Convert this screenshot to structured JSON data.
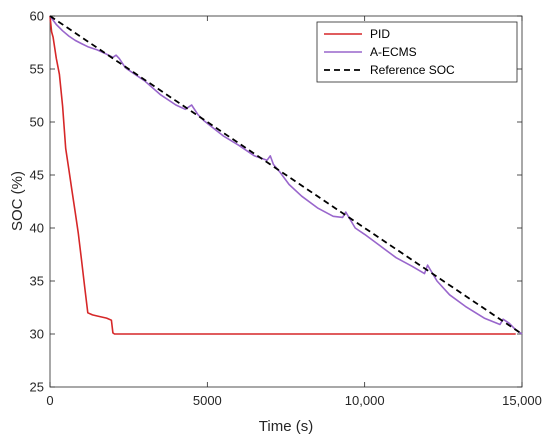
{
  "chart_data": {
    "type": "line",
    "title": "",
    "xlabel": "Time (s)",
    "ylabel": "SOC (%)",
    "xlim": [
      0,
      15000
    ],
    "ylim": [
      25,
      60
    ],
    "xticks": [
      0,
      5000,
      10000,
      15000
    ],
    "xtick_labels": [
      "0",
      "5000",
      "10,000",
      "15,000"
    ],
    "yticks": [
      25,
      30,
      35,
      40,
      45,
      50,
      55,
      60
    ],
    "ytick_labels": [
      "25",
      "30",
      "35",
      "40",
      "45",
      "50",
      "55",
      "60"
    ],
    "grid": false,
    "legend_position": "top-right",
    "series": [
      {
        "name": "PID",
        "color": "#d62728",
        "style": "solid",
        "x": [
          0,
          50,
          100,
          150,
          200,
          300,
          400,
          500,
          600,
          700,
          800,
          900,
          1000,
          1100,
          1200,
          1350,
          1500,
          1800,
          1950,
          2000,
          2050,
          2500,
          3000,
          5000,
          7000,
          10000,
          12000,
          14000,
          14800
        ],
        "y": [
          60,
          58.5,
          58,
          57,
          56,
          54.5,
          51.5,
          47.5,
          45.5,
          43.5,
          41.5,
          39.5,
          37,
          34.5,
          32,
          31.8,
          31.7,
          31.5,
          31.3,
          30.1,
          30,
          30,
          30,
          30,
          30,
          30,
          30,
          30,
          30
        ]
      },
      {
        "name": "A-ECMS",
        "color": "#9966cc",
        "style": "solid",
        "x": [
          0,
          200,
          400,
          600,
          800,
          1000,
          1200,
          1500,
          1800,
          2000,
          2100,
          2200,
          2400,
          2600,
          3000,
          3500,
          4000,
          4300,
          4500,
          4700,
          4900,
          5500,
          6000,
          6500,
          6900,
          7000,
          7100,
          7300,
          7600,
          8000,
          8500,
          9000,
          9300,
          9400,
          9500,
          9700,
          10000,
          10500,
          11000,
          11500,
          11900,
          12000,
          12100,
          12300,
          12700,
          13200,
          13800,
          14300,
          14400,
          14600,
          14800,
          15000
        ],
        "y": [
          60,
          59.2,
          58.6,
          58.1,
          57.7,
          57.4,
          57.1,
          56.8,
          56.4,
          56.1,
          56.3,
          56.0,
          55.1,
          54.7,
          53.9,
          52.6,
          51.6,
          51.2,
          51.6,
          50.7,
          50.1,
          48.7,
          47.8,
          46.8,
          46.4,
          46.8,
          46.0,
          45.3,
          44.1,
          43.0,
          41.9,
          41.1,
          41.0,
          41.5,
          41.0,
          40.0,
          39.4,
          38.3,
          37.2,
          36.4,
          35.7,
          36.5,
          36.0,
          35.0,
          33.7,
          32.6,
          31.5,
          30.9,
          31.4,
          31.0,
          30.4,
          30
        ]
      },
      {
        "name": "Reference SOC",
        "color": "#000000",
        "style": "dashed",
        "x": [
          0,
          15000
        ],
        "y": [
          60,
          30
        ]
      }
    ]
  }
}
